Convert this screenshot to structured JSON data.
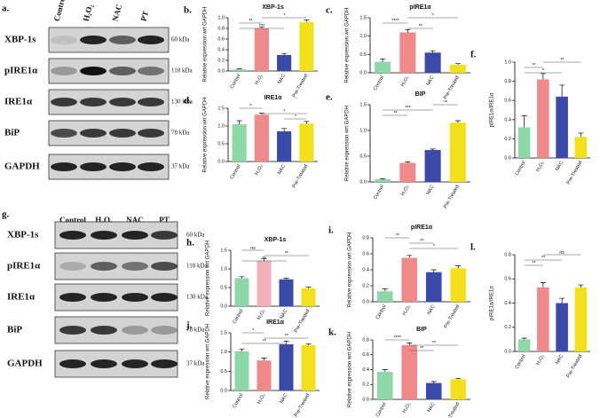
{
  "blots": [
    {
      "label": "a.",
      "lanes": [
        "Control",
        "H₂O₂",
        "NAC",
        "PT"
      ],
      "rows": [
        {
          "name": "XBP-1s",
          "size": "60 kDa"
        },
        {
          "name": "pIRE1α",
          "size": "110 kDa"
        },
        {
          "name": "IRE1α",
          "size": "130 kDa"
        },
        {
          "name": "BiP",
          "size": "78 kDa"
        },
        {
          "name": "GAPDH",
          "size": "37 kDa"
        }
      ]
    },
    {
      "label": "g.",
      "lanes": [
        "Control",
        "H₂O₂",
        "NAC",
        "PT"
      ],
      "rows": [
        {
          "name": "XBP-1s",
          "size": "60 kDa"
        },
        {
          "name": "pIRE1α",
          "size": "110 kDa"
        },
        {
          "name": "IRE1α",
          "size": "130 kDa"
        },
        {
          "name": "BiP",
          "size": "78 kDa"
        },
        {
          "name": "GAPDH",
          "size": "37 kDa"
        }
      ]
    }
  ],
  "chart_data": [
    {
      "panel": "b.",
      "type": "bar",
      "title": "XBP-1s",
      "y_label": "Relative expression wrt GAPDH",
      "categories": [
        "Control",
        "H₂O₂",
        "NAC",
        "Pre-Treated"
      ],
      "values": [
        0.03,
        0.8,
        0.3,
        0.92
      ],
      "errors": [
        0.01,
        0.03,
        0.03,
        0.04
      ],
      "colors": [
        "#8ed8a8",
        "#f08a8a",
        "#3b4aa8",
        "#f2e01a"
      ],
      "ylim": [
        0,
        1
      ],
      "yticks": [
        {
          "value": 0,
          "label": "0.0"
        },
        0.2,
        0.4,
        0.6,
        0.8,
        {
          "value": 1,
          "label": "1.0"
        }
      ],
      "annotations": [
        "*",
        "**",
        "***"
      ]
    },
    {
      "panel": "c.",
      "type": "bar",
      "title": "pIRE1α",
      "y_label": "Relative expression wrt GAPDH",
      "categories": [
        "Control",
        "H₂O₂",
        "NAC",
        "Pre-Treated"
      ],
      "values": [
        0.3,
        1.1,
        0.55,
        0.22
      ],
      "errors": [
        0.08,
        0.08,
        0.05,
        0.03
      ],
      "colors": [
        "#8ed8a8",
        "#f08a8a",
        "#3b4aa8",
        "#f2e01a"
      ],
      "ylim": [
        0,
        1.5
      ],
      "yticks": [
        {
          "value": 0,
          "label": "0.0"
        },
        0.5,
        {
          "value": 1,
          "label": "1.0"
        },
        1.5
      ],
      "annotations": [
        "*",
        "****",
        "**"
      ]
    },
    {
      "panel": "d.",
      "type": "bar",
      "title": "IRE1α",
      "y_label": "Relative expression wrt GAPDH",
      "categories": [
        "Control",
        "H₂O₂",
        "NAC",
        "Pre-Treated"
      ],
      "values": [
        1.05,
        1.32,
        0.85,
        1.07
      ],
      "errors": [
        0.1,
        0.04,
        0.08,
        0.06
      ],
      "colors": [
        "#8ed8a8",
        "#f08a8a",
        "#3b4aa8",
        "#f2e01a"
      ],
      "ylim": [
        0,
        1.5
      ],
      "yticks": [
        {
          "value": 0,
          "label": "0.0"
        },
        0.5,
        {
          "value": 1,
          "label": "1.0"
        },
        1.5
      ],
      "annotations": [
        "*",
        "*",
        "*"
      ]
    },
    {
      "panel": "e.",
      "type": "bar",
      "title": "BIP",
      "y_label": "Relative expression wrt GAPDH",
      "categories": [
        "Control",
        "H₂O₂",
        "NAC",
        "Pre-Treated"
      ],
      "values": [
        0.05,
        0.37,
        0.62,
        1.15
      ],
      "errors": [
        0.01,
        0.02,
        0.02,
        0.04
      ],
      "colors": [
        "#8ed8a8",
        "#f08a8a",
        "#3b4aa8",
        "#f2e01a"
      ],
      "ylim": [
        0,
        1.5
      ],
      "yticks": [
        {
          "value": 0,
          "label": "0.0"
        },
        0.5,
        {
          "value": 1,
          "label": "1.0"
        },
        1.5
      ],
      "annotations": [
        "**",
        "***",
        "**"
      ]
    },
    {
      "panel": "f.",
      "type": "bar",
      "y_label": "pIRE1α/IRE1α",
      "categories": [
        "Control",
        "H₂O₂",
        "NAC",
        "Pre-Treated"
      ],
      "values": [
        0.32,
        0.82,
        0.64,
        0.22
      ],
      "errors": [
        0.12,
        0.06,
        0.12,
        0.04
      ],
      "colors": [
        "#8ed8a8",
        "#f08a8a",
        "#3b4aa8",
        "#f2e01a"
      ],
      "ylim": [
        0,
        1
      ],
      "yticks": [
        {
          "value": 0,
          "label": "0.0"
        },
        0.2,
        0.4,
        0.6,
        0.8,
        {
          "value": 1,
          "label": "1.0"
        }
      ],
      "annotations": [
        "**",
        "**",
        "*"
      ]
    },
    {
      "panel": "h.",
      "type": "bar",
      "title": "XBP-1s",
      "y_label": "Relative expression wrt GAPDH",
      "categories": [
        "Control",
        "H₂O₂",
        "NAC",
        "Pre-Treated"
      ],
      "values": [
        0.75,
        1.22,
        0.72,
        0.48
      ],
      "errors": [
        0.04,
        0.06,
        0.03,
        0.03
      ],
      "colors": [
        "#8ed8a8",
        "#f4b0b8",
        "#3b4aa8",
        "#f2e01a"
      ],
      "ylim": [
        0,
        1.5
      ],
      "yticks": [
        {
          "value": 0,
          "label": "0.0"
        },
        0.5,
        {
          "value": 1,
          "label": "1.0"
        },
        1.5
      ],
      "annotations": [
        "ns",
        "**",
        "**"
      ]
    },
    {
      "panel": "i.",
      "type": "bar",
      "title": "pIRE1α",
      "y_label": "Relative expression wrt GAPDH",
      "categories": [
        "Control",
        "H₂O₂",
        "NAC",
        "Pre-Treated"
      ],
      "values": [
        0.13,
        0.55,
        0.37,
        0.42
      ],
      "errors": [
        0.03,
        0.03,
        0.03,
        0.03
      ],
      "colors": [
        "#8ed8a8",
        "#f08a8a",
        "#3b4aa8",
        "#f2e01a"
      ],
      "ylim": [
        0,
        0.8
      ],
      "yticks": [
        {
          "value": 0,
          "label": "0.0"
        },
        0.2,
        0.4,
        0.6,
        0.8
      ],
      "annotations": [
        "**",
        "**",
        "*"
      ]
    },
    {
      "panel": "j.",
      "type": "bar",
      "title": "IRE1α",
      "y_label": "Relative expression wrt GAPDH",
      "categories": [
        "Control",
        "H₂O₂",
        "NAC",
        "Pre-Treated"
      ],
      "values": [
        1.02,
        0.78,
        1.2,
        1.18
      ],
      "errors": [
        0.06,
        0.06,
        0.08,
        0.03
      ],
      "colors": [
        "#8ed8a8",
        "#f08a8a",
        "#3b4aa8",
        "#f2e01a"
      ],
      "ylim": [
        0,
        1.5
      ],
      "yticks": [
        {
          "value": 0,
          "label": "0.0"
        },
        0.5,
        {
          "value": 1,
          "label": "1.0"
        },
        1.5
      ],
      "annotations": [
        "*",
        "**",
        "**"
      ]
    },
    {
      "panel": "k.",
      "type": "bar",
      "title": "BIP",
      "y_label": "Relative expression wrt GAPDH",
      "categories": [
        "Control",
        "H₂O₂",
        "NAC",
        "Pre-Treated"
      ],
      "values": [
        0.37,
        0.73,
        0.22,
        0.27
      ],
      "errors": [
        0.03,
        0.03,
        0.02,
        0.01
      ],
      "colors": [
        "#8ed8a8",
        "#f08a8a",
        "#3b4aa8",
        "#f2e01a"
      ],
      "ylim": [
        0,
        0.8
      ],
      "yticks": [
        {
          "value": 0,
          "label": "0.0"
        },
        0.2,
        0.4,
        0.6,
        0.8
      ],
      "annotations": [
        "****",
        "**",
        "**"
      ]
    },
    {
      "panel": "l.",
      "type": "bar",
      "y_label": "pIRE1α/IRE1α",
      "categories": [
        "Control",
        "H₂O₂",
        "NAC",
        "Pre-Treated"
      ],
      "values": [
        0.1,
        0.53,
        0.4,
        0.53
      ],
      "errors": [
        0.01,
        0.04,
        0.04,
        0.02
      ],
      "colors": [
        "#8ed8a8",
        "#f08a8a",
        "#3b4aa8",
        "#f2e01a"
      ],
      "ylim": [
        0,
        0.8
      ],
      "yticks": [
        {
          "value": 0,
          "label": "0.0"
        },
        0.2,
        0.4,
        0.6,
        0.8
      ],
      "annotations": [
        "ns",
        "**",
        "**"
      ]
    }
  ]
}
